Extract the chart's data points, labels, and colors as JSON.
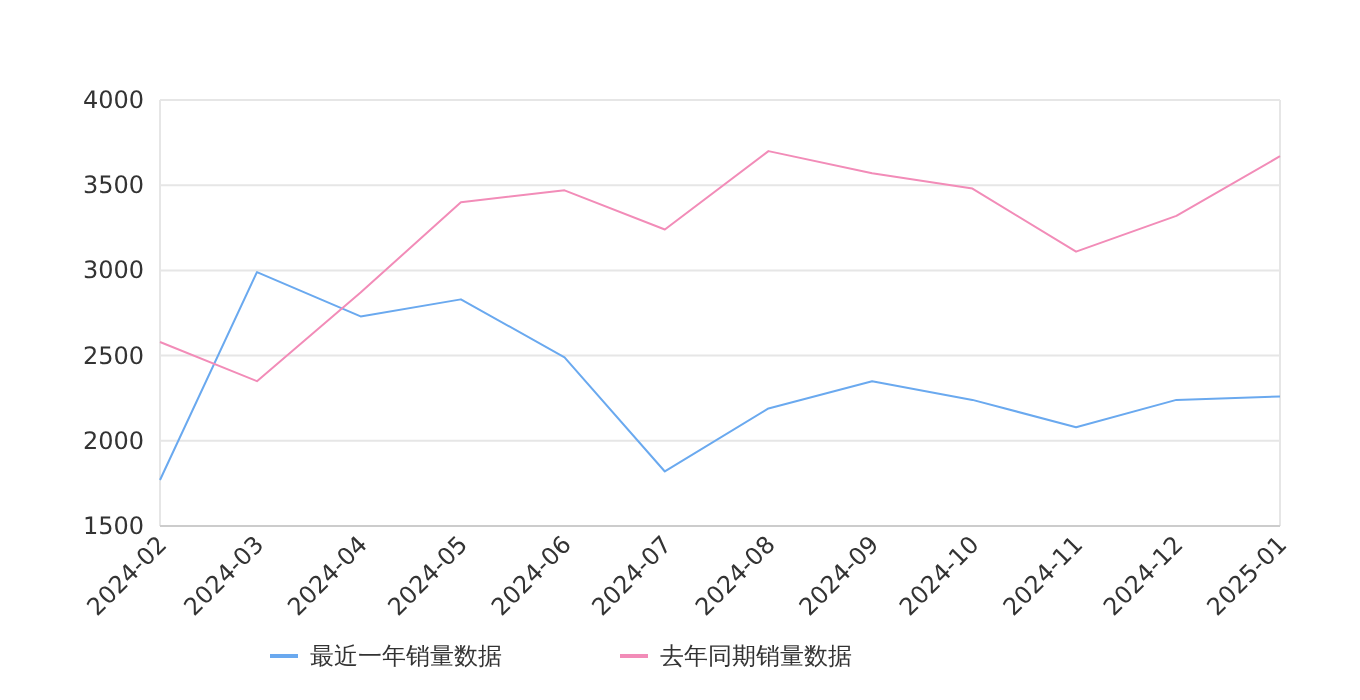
{
  "chart_data": {
    "type": "line",
    "x": [
      "2024-02",
      "2024-03",
      "2024-04",
      "2024-05",
      "2024-06",
      "2024-07",
      "2024-08",
      "2024-09",
      "2024-10",
      "2024-11",
      "2024-12",
      "2025-01"
    ],
    "series": [
      {
        "name": "最近一年销量数据",
        "color": "#6aa9ef",
        "values": [
          1770,
          2990,
          2730,
          2830,
          2490,
          1820,
          2190,
          2350,
          2240,
          2080,
          2240,
          2260
        ]
      },
      {
        "name": "去年同期销量数据",
        "color": "#f28cb8",
        "values": [
          2580,
          2350,
          2870,
          3400,
          3470,
          3240,
          3700,
          3570,
          3480,
          3110,
          3320,
          3670
        ]
      }
    ],
    "xlim": [
      "2024-02",
      "2025-01"
    ],
    "ylim": [
      1500,
      4000
    ],
    "yticks": [
      1500,
      2000,
      2500,
      3000,
      3500,
      4000
    ],
    "xticks": [
      "2024-02",
      "2024-03",
      "2024-04",
      "2024-05",
      "2024-06",
      "2024-07",
      "2024-08",
      "2024-09",
      "2024-10",
      "2024-11",
      "2024-12",
      "2025-01"
    ],
    "grid": "y",
    "legend": "bottom",
    "marker": "none",
    "line_style": "solid"
  }
}
